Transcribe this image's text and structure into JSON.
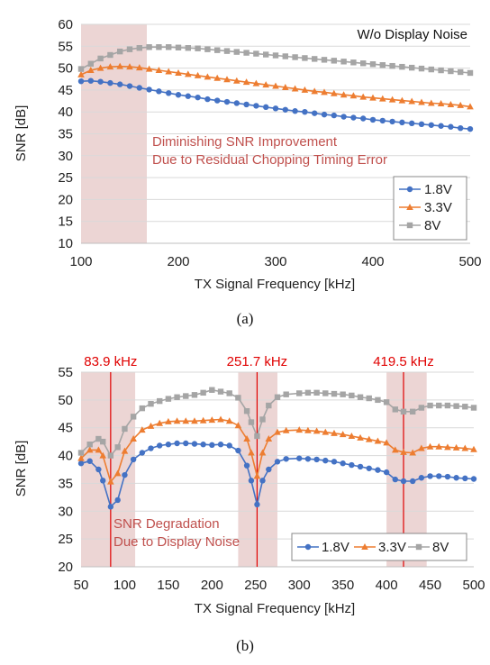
{
  "colors": {
    "series_1_8V": "#4472c4",
    "series_3_3V": "#ed7d31",
    "series_8V": "#a5a5a5",
    "shade": "#ecd5d4",
    "annotation": "#c0504d",
    "frequency_marker": "#e00000"
  },
  "chart_data": [
    {
      "type": "line",
      "caption": "(a)",
      "xlabel": "TX Signal Frequency [kHz]",
      "ylabel": "SNR [dB]",
      "xlim": [
        100,
        500
      ],
      "ylim": [
        10,
        60
      ],
      "xticks": [
        100,
        200,
        300,
        400,
        500
      ],
      "yticks": [
        10,
        15,
        20,
        25,
        30,
        35,
        40,
        45,
        50,
        55,
        60
      ],
      "grid": "horizontal",
      "legend_placement": "bottom-right",
      "header_note": "W/o Display Noise",
      "annotation_lines": [
        "Diminishing SNR Improvement",
        "Due to Residual Chopping Timing Error"
      ],
      "shaded_band": [
        100,
        170
      ],
      "x": [
        100,
        110,
        120,
        130,
        140,
        150,
        160,
        170,
        180,
        190,
        200,
        210,
        220,
        230,
        240,
        250,
        260,
        270,
        280,
        290,
        300,
        310,
        320,
        330,
        340,
        350,
        360,
        370,
        380,
        390,
        400,
        410,
        420,
        430,
        440,
        450,
        460,
        470,
        480,
        490,
        500
      ],
      "series": [
        {
          "name": "1.8V",
          "marker": "circle",
          "values": [
            47.0,
            47.1,
            46.9,
            46.6,
            46.3,
            45.9,
            45.5,
            45.1,
            44.7,
            44.3,
            43.9,
            43.6,
            43.3,
            42.9,
            42.6,
            42.3,
            42.0,
            41.7,
            41.4,
            41.1,
            40.8,
            40.5,
            40.2,
            40.0,
            39.7,
            39.4,
            39.2,
            38.9,
            38.7,
            38.5,
            38.2,
            38.0,
            37.8,
            37.6,
            37.4,
            37.2,
            37.0,
            36.8,
            36.6,
            36.3,
            36.1
          ]
        },
        {
          "name": "3.3V",
          "marker": "triangle",
          "values": [
            48.5,
            49.5,
            50.0,
            50.3,
            50.4,
            50.3,
            50.1,
            49.8,
            49.5,
            49.2,
            48.9,
            48.6,
            48.3,
            48.0,
            47.7,
            47.4,
            47.1,
            46.8,
            46.5,
            46.2,
            45.9,
            45.6,
            45.3,
            45.0,
            44.7,
            44.5,
            44.2,
            43.9,
            43.7,
            43.4,
            43.2,
            43.0,
            42.8,
            42.6,
            42.4,
            42.2,
            42.0,
            41.9,
            41.7,
            41.5,
            41.2
          ]
        },
        {
          "name": "8V",
          "marker": "square",
          "values": [
            49.8,
            51.0,
            52.2,
            53.0,
            53.8,
            54.3,
            54.6,
            54.8,
            54.8,
            54.8,
            54.7,
            54.6,
            54.5,
            54.3,
            54.1,
            53.9,
            53.7,
            53.5,
            53.3,
            53.1,
            52.9,
            52.7,
            52.5,
            52.3,
            52.1,
            51.9,
            51.7,
            51.5,
            51.3,
            51.1,
            50.9,
            50.7,
            50.5,
            50.3,
            50.1,
            49.9,
            49.7,
            49.5,
            49.3,
            49.1,
            48.9
          ]
        }
      ]
    },
    {
      "type": "line",
      "caption": "(b)",
      "xlabel": "TX Signal Frequency [kHz]",
      "ylabel": "SNR [dB]",
      "xlim": [
        50,
        500
      ],
      "ylim": [
        20,
        55
      ],
      "xticks": [
        50,
        100,
        150,
        200,
        250,
        300,
        350,
        400,
        450,
        500
      ],
      "yticks": [
        20,
        25,
        30,
        35,
        40,
        45,
        50,
        55
      ],
      "grid": "horizontal",
      "legend_placement": "bottom-right",
      "annotation_lines": [
        "SNR Degradation",
        "Due to Display Noise"
      ],
      "shaded_bands": [
        [
          50,
          112
        ],
        [
          230,
          275
        ],
        [
          400,
          446
        ]
      ],
      "markers": [
        {
          "x": 83.9,
          "label": "83.9 kHz"
        },
        {
          "x": 251.7,
          "label": "251.7 kHz"
        },
        {
          "x": 419.5,
          "label": "419.5 kHz"
        }
      ],
      "x": [
        50,
        60,
        70,
        75,
        83.9,
        92,
        100,
        110,
        120,
        130,
        140,
        150,
        160,
        170,
        180,
        190,
        200,
        210,
        220,
        230,
        240,
        245,
        251.7,
        258,
        265,
        275,
        285,
        300,
        310,
        320,
        330,
        340,
        350,
        360,
        370,
        380,
        390,
        400,
        410,
        419.5,
        430,
        440,
        450,
        460,
        470,
        480,
        490,
        500
      ],
      "series": [
        {
          "name": "1.8V",
          "marker": "circle",
          "values": [
            38.6,
            39.0,
            37.5,
            35.5,
            30.8,
            32.0,
            36.5,
            39.3,
            40.5,
            41.3,
            41.8,
            42.0,
            42.2,
            42.2,
            42.1,
            42.0,
            41.9,
            42.0,
            41.8,
            40.9,
            38.2,
            35.5,
            31.2,
            35.5,
            37.5,
            38.9,
            39.4,
            39.5,
            39.4,
            39.3,
            39.1,
            38.9,
            38.6,
            38.3,
            38.0,
            37.7,
            37.4,
            37.0,
            35.7,
            35.4,
            35.4,
            36.0,
            36.3,
            36.3,
            36.2,
            36.0,
            35.9,
            35.8
          ]
        },
        {
          "name": "3.3V",
          "marker": "triangle",
          "values": [
            39.5,
            41.0,
            41.0,
            40.0,
            35.3,
            36.8,
            40.8,
            43.0,
            44.6,
            45.3,
            45.8,
            46.1,
            46.2,
            46.2,
            46.2,
            46.3,
            46.4,
            46.5,
            46.2,
            45.4,
            43.0,
            40.5,
            36.3,
            40.5,
            43.0,
            44.2,
            44.5,
            44.6,
            44.5,
            44.4,
            44.2,
            44.0,
            43.8,
            43.5,
            43.2,
            42.9,
            42.6,
            42.3,
            41.0,
            40.6,
            40.5,
            41.3,
            41.6,
            41.6,
            41.5,
            41.4,
            41.3,
            41.1
          ]
        },
        {
          "name": "8V",
          "marker": "square",
          "values": [
            40.5,
            42.0,
            43.0,
            42.5,
            40.0,
            41.5,
            44.8,
            47.0,
            48.5,
            49.3,
            49.8,
            50.2,
            50.5,
            50.7,
            50.9,
            51.3,
            51.8,
            51.5,
            51.2,
            50.4,
            48.0,
            46.0,
            43.5,
            46.5,
            49.0,
            50.5,
            51.0,
            51.2,
            51.3,
            51.3,
            51.2,
            51.1,
            51.0,
            50.8,
            50.5,
            50.3,
            50.0,
            49.6,
            48.3,
            47.9,
            47.9,
            48.6,
            49.0,
            49.0,
            49.0,
            48.9,
            48.8,
            48.6
          ]
        }
      ]
    }
  ]
}
